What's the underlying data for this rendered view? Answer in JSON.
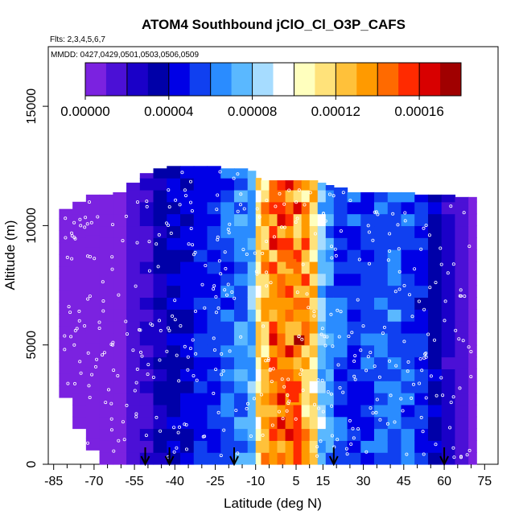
{
  "chart_data": {
    "type": "heatmap",
    "title": "ATOM4 Southbound jClO_Cl_O3P_CAFS",
    "flights_note": "Flts: 2,3,4,5,6,7",
    "dates_note": "MMDD: 0427,0429,0501,0503,0506,0509",
    "xlabel": "Latitude (deg N)",
    "ylabel": "Altitude (m)",
    "xlim": [
      -87,
      80
    ],
    "ylim": [
      0,
      17500
    ],
    "x_ticks": [
      -85,
      -70,
      -55,
      -40,
      -25,
      -10,
      5,
      15,
      30,
      45,
      60,
      75
    ],
    "x_tick_labels": [
      "-85",
      "-70",
      "-55",
      "-40",
      "-25",
      "-10",
      "5",
      "15",
      "30",
      "45",
      "60",
      "75"
    ],
    "x_minor_ticks": [
      -80,
      -75,
      -65,
      -60,
      -50,
      -45,
      -35,
      -30,
      -20,
      -15,
      -5,
      0,
      10,
      20,
      25,
      35,
      40,
      50,
      55,
      65,
      70
    ],
    "y_ticks": [
      0,
      5000,
      10000,
      15000
    ],
    "y_tick_labels": [
      "0",
      "5000",
      "10000",
      "15000"
    ],
    "colorbar": {
      "range": [
        0,
        0.00018
      ],
      "colors": [
        "#7b22e0",
        "#4b10d6",
        "#1a00c8",
        "#0000a8",
        "#0000e6",
        "#1040f0",
        "#2a8cff",
        "#5ab8ff",
        "#a6dcff",
        "#ffffff",
        "#ffffbe",
        "#ffe27a",
        "#ffc13a",
        "#ff9a00",
        "#ff6a00",
        "#ff2a00",
        "#d80000",
        "#a00000"
      ],
      "tick_values": [
        0,
        4e-05,
        8e-05,
        0.00012,
        0.00016
      ],
      "tick_labels": [
        "0.00000",
        "0.00004",
        "0.00008",
        "0.00012",
        "0.00016"
      ]
    },
    "grid_lat_edges": [
      -83,
      -78,
      -73,
      -68,
      -63,
      -58,
      -53,
      -48,
      -43,
      -38,
      -33,
      -28,
      -23,
      -18,
      -13,
      -10,
      -8,
      -5,
      -2,
      1,
      4,
      7,
      10,
      13,
      16,
      19,
      24,
      29,
      34,
      39,
      44,
      49,
      54,
      59,
      64,
      69,
      72
    ],
    "column_tops_m": [
      10700,
      11000,
      11300,
      11300,
      11400,
      11800,
      12200,
      12400,
      12500,
      12500,
      12500,
      12500,
      12400,
      12400,
      12300,
      12000,
      11900,
      11900,
      11900,
      11900,
      11900,
      11900,
      11900,
      11800,
      11700,
      11600,
      11400,
      11400,
      11400,
      11400,
      11400,
      11300,
      11300,
      11300,
      11200,
      11200
    ],
    "column_bottoms_m": [
      2800,
      1500,
      600,
      0,
      0,
      0,
      0,
      0,
      0,
      0,
      0,
      0,
      0,
      0,
      0,
      0,
      0,
      0,
      0,
      0,
      0,
      0,
      0,
      0,
      0,
      0,
      0,
      0,
      0,
      0,
      0,
      0,
      0,
      0,
      0,
      0
    ],
    "column_values": [
      3e-06,
      4e-06,
      5e-06,
      6e-06,
      8e-06,
      1.2e-05,
      2e-05,
      3e-05,
      3.6e-05,
      4.2e-05,
      4.8e-05,
      5.2e-05,
      5.8e-05,
      6.4e-05,
      7.2e-05,
      0.00011,
      0.000128,
      0.00014,
      0.000142,
      0.00014,
      0.000138,
      0.00013,
      0.000118,
      8e-05,
      6.4e-05,
      5.6e-05,
      5.2e-05,
      5.4e-05,
      5.8e-05,
      6e-05,
      5.6e-05,
      4.8e-05,
      3.6e-05,
      2.2e-05,
      1.4e-05,
      8e-06
    ],
    "hotspots": [
      {
        "lat": 6,
        "alt_m": 5200,
        "value": 0.000172
      },
      {
        "lat": 4,
        "alt_m": 2800,
        "value": 0.000155
      },
      {
        "lat": 3,
        "alt_m": 8400,
        "value": 0.00015
      }
    ],
    "marker_latitudes": [
      -51,
      -42,
      -18,
      19,
      60
    ],
    "series": [
      {
        "name": "flight track samples",
        "marker": "open-circle"
      }
    ]
  }
}
